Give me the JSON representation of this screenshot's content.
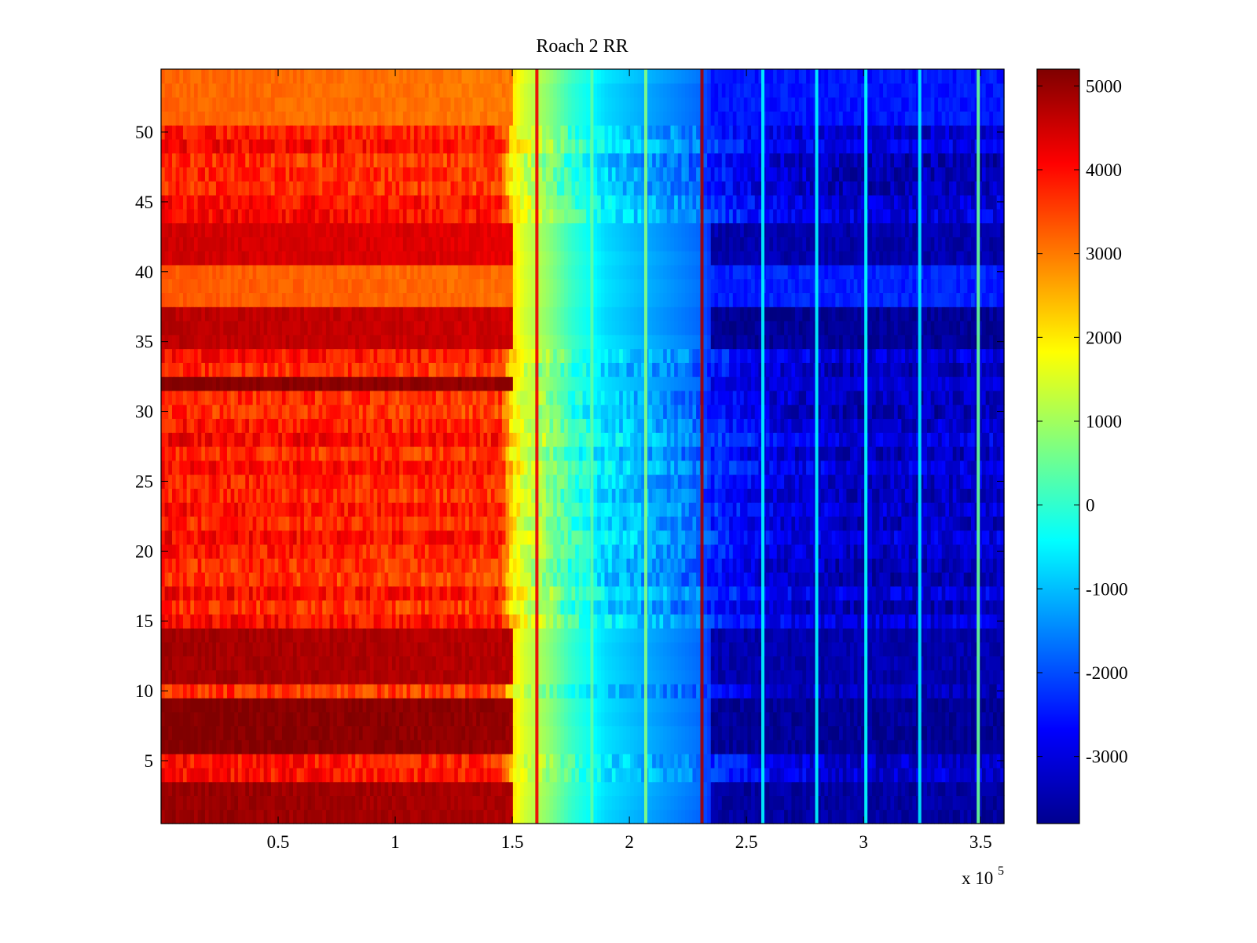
{
  "chart_data": {
    "type": "heatmap",
    "title": "Roach 2 RR",
    "xlabel": "",
    "ylabel": "",
    "x_range": [
      0,
      360000
    ],
    "y_range": [
      0.5,
      54.5
    ],
    "x_ticks": [
      50000,
      100000,
      150000,
      200000,
      250000,
      300000,
      350000
    ],
    "x_tick_labels": [
      "0.5",
      "1",
      "1.5",
      "2",
      "2.5",
      "3",
      "3.5"
    ],
    "x_exponent_label": {
      "base": "x 10",
      "power": "5"
    },
    "y_ticks": [
      5,
      10,
      15,
      20,
      25,
      30,
      35,
      40,
      45,
      50
    ],
    "y_tick_labels": [
      "5",
      "10",
      "15",
      "20",
      "25",
      "30",
      "35",
      "40",
      "45",
      "50"
    ],
    "colormap": "jet",
    "colorbar": {
      "range": [
        -3800,
        5200
      ],
      "ticks": [
        5000,
        4000,
        3000,
        2000,
        1000,
        0,
        -1000,
        -2000,
        -3000
      ],
      "tick_labels": [
        "5000",
        "4000",
        "3000",
        "2000",
        "1000",
        "0",
        "-1000",
        "-2000",
        "-3000"
      ],
      "placement": "right"
    },
    "rows": 54,
    "column_profile": [
      {
        "x": 0,
        "value": 3900
      },
      {
        "x": 145000,
        "value": 3700
      },
      {
        "x": 150000,
        "value": 2100
      },
      {
        "x": 155000,
        "value": 1500
      },
      {
        "x": 165000,
        "value": 900
      },
      {
        "x": 175000,
        "value": 100
      },
      {
        "x": 190000,
        "value": -700
      },
      {
        "x": 210000,
        "value": -1200
      },
      {
        "x": 230000,
        "value": -1700
      },
      {
        "x": 235000,
        "value": -2300
      },
      {
        "x": 260000,
        "value": -2900
      },
      {
        "x": 300000,
        "value": -3200
      },
      {
        "x": 360000,
        "value": -3100
      }
    ],
    "vertical_streaks": [
      {
        "x": 231000,
        "value": 4900
      },
      {
        "x": 160500,
        "value": 4200
      },
      {
        "x": 257000,
        "value": -500
      },
      {
        "x": 280000,
        "value": -500
      },
      {
        "x": 301000,
        "value": -400
      },
      {
        "x": 324000,
        "value": -600
      },
      {
        "x": 349000,
        "value": 500
      },
      {
        "x": 207000,
        "value": 700
      },
      {
        "x": 184000,
        "value": 400
      }
    ],
    "row_offsets": [
      {
        "rows": [
          1,
          2,
          3
        ],
        "left_value": 5000,
        "right_value": -3500
      },
      {
        "rows": [
          6,
          7,
          8,
          9
        ],
        "left_value": 5200,
        "right_value": -3600
      },
      {
        "rows": [
          11,
          12,
          13,
          14
        ],
        "left_value": 4900,
        "right_value": -3400
      },
      {
        "rows": [
          32
        ],
        "left_value": 5200,
        "right_value": -3000
      },
      {
        "rows": [
          35,
          36,
          37
        ],
        "left_value": 4700,
        "right_value": -3600
      },
      {
        "rows": [
          41,
          42,
          43
        ],
        "left_value": 4500,
        "right_value": -3400
      },
      {
        "rows": [
          38,
          39,
          40
        ],
        "left_value": 3300,
        "right_value": -2400
      },
      {
        "rows": [
          51,
          52,
          53,
          54
        ],
        "left_value": 3200,
        "right_value": -2500
      }
    ]
  }
}
